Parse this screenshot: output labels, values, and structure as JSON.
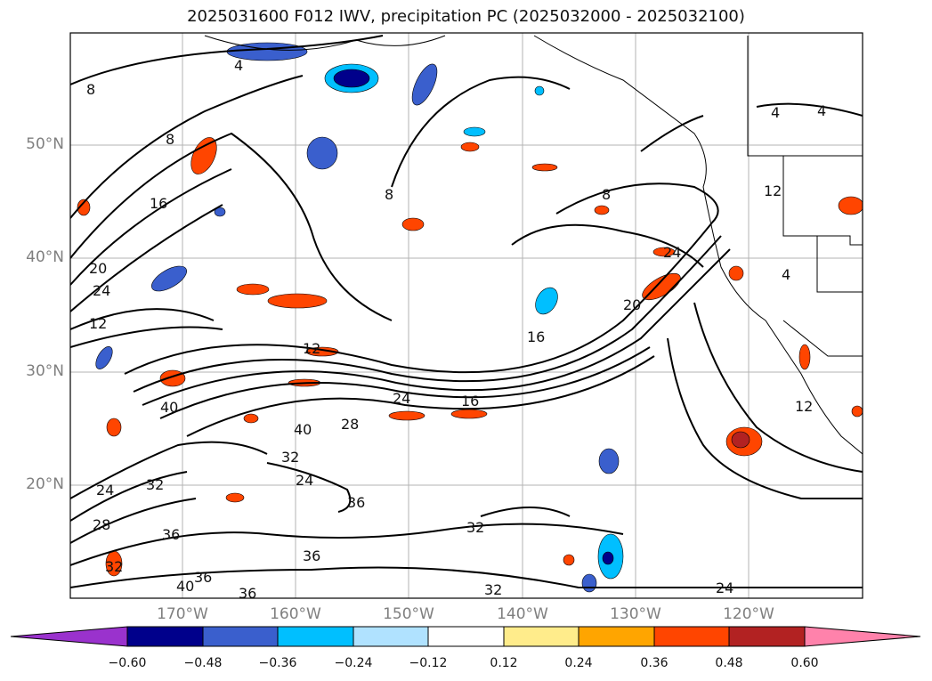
{
  "title": "2025031600 F012 IWV, precipitation PC (2025032000 - 2025032100)",
  "lat_labels": [
    "50°N",
    "40°N",
    "30°N",
    "20°N"
  ],
  "lon_labels": [
    "170°W",
    "160°W",
    "150°W",
    "140°W",
    "130°W",
    "120°W"
  ],
  "colorbar": {
    "tick_labels": [
      "−0.60",
      "−0.48",
      "−0.36",
      "−0.24",
      "−0.12",
      "0.12",
      "0.24",
      "0.36",
      "0.48",
      "0.60"
    ],
    "colors": [
      "#9a32cd",
      "#00008b",
      "#3a5fcd",
      "#00bfff",
      "#b0e2ff",
      "#ffffff",
      "#ffec8b",
      "#ffa500",
      "#ff4500",
      "#b22222",
      "#ff82ab"
    ]
  },
  "contour_labels": [
    "4",
    "8",
    "12",
    "16",
    "20",
    "24",
    "28",
    "32",
    "36",
    "40"
  ]
}
